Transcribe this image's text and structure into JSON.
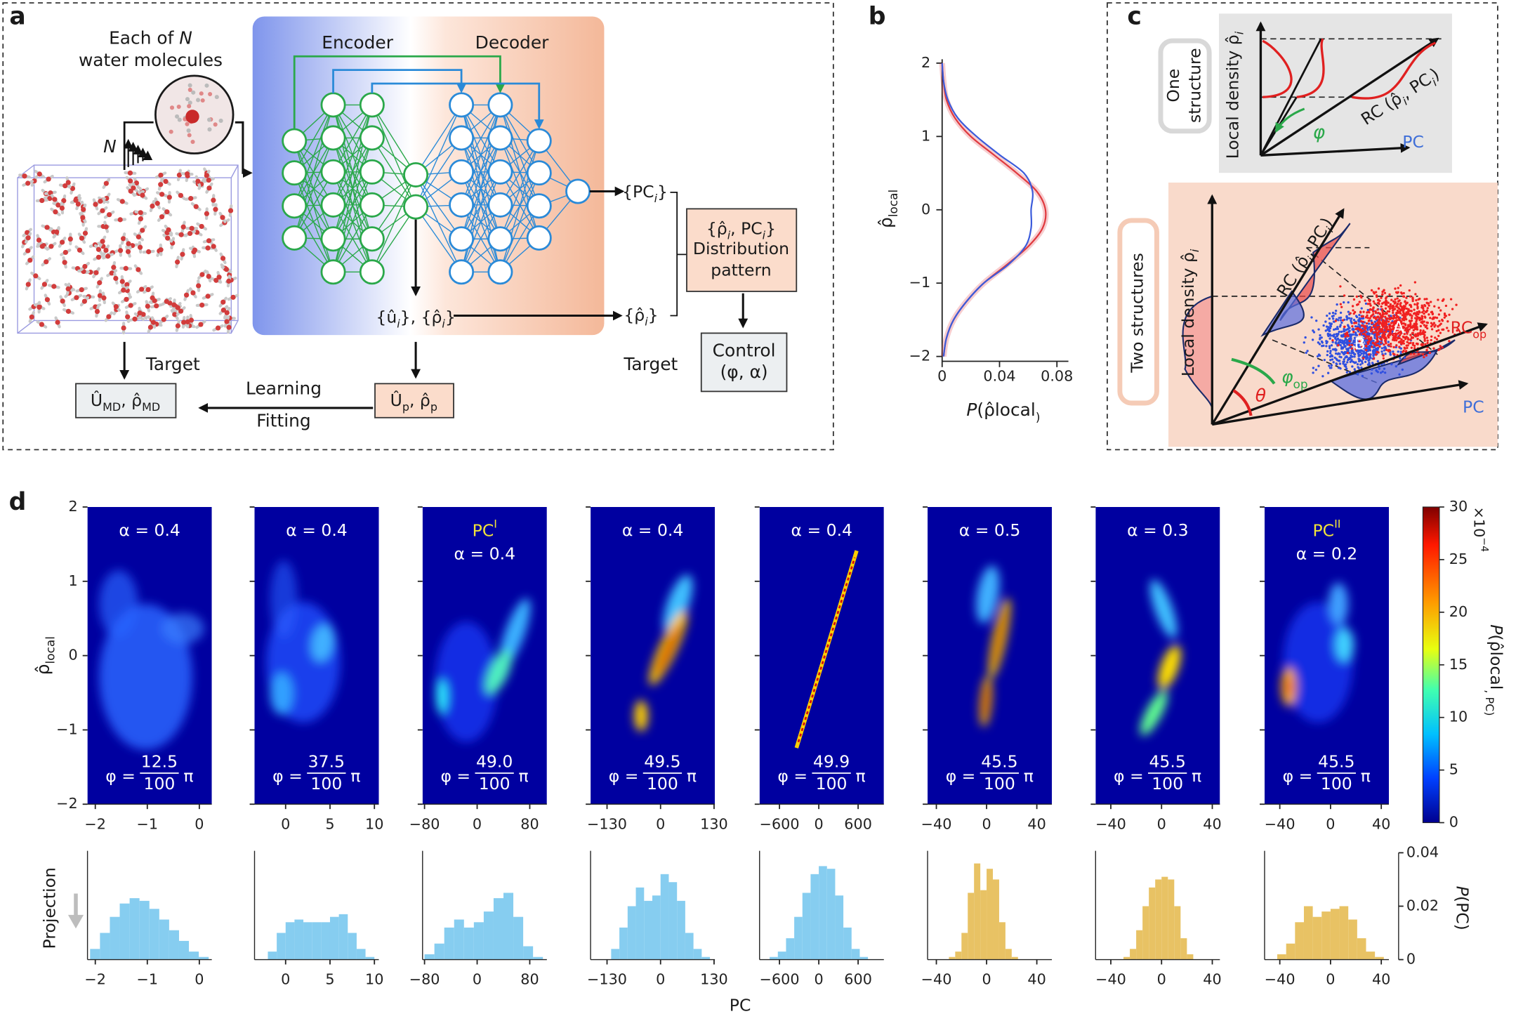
{
  "panel_a": {
    "label": "a",
    "encoder": "Encoder",
    "decoder": "Decoder",
    "molecules": {
      "line1": [
        "Each of ",
        "N"
      ],
      "line2": "water molecules"
    },
    "n_label": "N",
    "pc_out": [
      "{PC",
      "i",
      "}"
    ],
    "latent": [
      "{û",
      "i",
      "}, {ρ̂",
      "i",
      "}"
    ],
    "rho_out": [
      "{ρ̂",
      "i",
      "}"
    ],
    "pattern": {
      "line1": [
        "{ρ̂",
        "i",
        ", PC",
        "i",
        "}"
      ],
      "line2": "Distribution",
      "line3": "pattern"
    },
    "control": {
      "line1": "Control",
      "line2": "(φ, α)"
    },
    "target_right": "Target",
    "target_left": "Target",
    "md": [
      "Û",
      "MD",
      ", ρ̂",
      "MD"
    ],
    "pred": [
      "Û",
      "p",
      ", ρ̂",
      "p"
    ],
    "learning": "Learning",
    "fitting": "Fitting"
  },
  "panel_b": {
    "label": "b"
  },
  "panel_c": {
    "label": "c",
    "one": {
      "line1": "One",
      "line2": "structure"
    },
    "two": "Two structures",
    "top_ylabel": [
      "Local density ρ̂",
      "i"
    ],
    "top_rc": [
      "RC (ρ̂",
      "i",
      ", PC",
      "i",
      ")"
    ],
    "top_pc": "PC",
    "top_phi": "φ",
    "bot_ylabel": [
      "Local density ρ̂",
      "i"
    ],
    "bot_rc": [
      "RC (ρ̂",
      "i",
      ", PC",
      "i",
      ")"
    ],
    "bot_rcop": [
      "RC",
      "op"
    ],
    "bot_phiop": [
      "φ",
      "op"
    ],
    "theta": "θ",
    "a": "A",
    "b": "B",
    "bot_pc": "PC"
  },
  "panel_d": {
    "label": "d",
    "ylabel": [
      "ρ̂",
      "local"
    ],
    "ylim": [
      -2,
      2
    ],
    "yticks": [
      {
        "value": -2,
        "label": "−2"
      },
      {
        "value": -1,
        "label": "−1"
      },
      0,
      1,
      2
    ],
    "phi_label": "φ =",
    "phi_den": "100",
    "pi": "π",
    "xlabel": "PC",
    "projection": "Projection",
    "hist_ylim": [
      0,
      0.04
    ],
    "hist_yticks": [
      0,
      0.02,
      0.04
    ],
    "hist_ylabel": [
      "P",
      "(PC)"
    ]
  },
  "chart_data": [
    {
      "type": "line",
      "xlabel": [
        "P",
        "(ρ̂",
        "local",
        ")"
      ],
      "ylabel": [
        "ρ̂",
        "local"
      ],
      "xlim": [
        0,
        0.088
      ],
      "xticks": [
        0,
        0.04,
        0.08
      ],
      "ylim": [
        -2,
        2
      ],
      "yticks": [
        {
          "value": -2,
          "label": "−2"
        },
        {
          "value": -1,
          "label": "−1"
        },
        0,
        1,
        2
      ],
      "y": [
        -2,
        -1.75,
        -1.5,
        -1.25,
        -1,
        -0.75,
        -0.5,
        -0.25,
        0,
        0.25,
        0.5,
        0.75,
        1,
        1.25,
        1.5,
        1.75,
        2
      ],
      "series": [
        {
          "color": "#e0393e",
          "values": [
            0.001,
            0.003,
            0.008,
            0.017,
            0.029,
            0.045,
            0.06,
            0.07,
            0.072,
            0.066,
            0.052,
            0.036,
            0.02,
            0.009,
            0.003,
            0.001,
            0
          ]
        },
        {
          "color": "#3b5bdb",
          "values": [
            0.001,
            0.003,
            0.008,
            0.017,
            0.029,
            0.046,
            0.058,
            0.062,
            0.062,
            0.063,
            0.057,
            0.04,
            0.024,
            0.011,
            0.004,
            0.001,
            0
          ]
        }
      ]
    },
    {
      "type": "heatmap",
      "alpha": "α = 0.4",
      "phi_num": "12.5",
      "xlim": [
        -2.15,
        0.24
      ],
      "xticks": [
        {
          "value": -2,
          "label": "−2"
        },
        {
          "value": -1,
          "label": "−1"
        },
        0
      ]
    },
    {
      "type": "heatmap",
      "alpha": "α = 0.4",
      "phi_num": "37.5",
      "xlim": [
        -3.5,
        10.5
      ],
      "xticks": [
        0,
        5,
        10
      ]
    },
    {
      "type": "heatmap",
      "title": [
        "PC",
        "I"
      ],
      "alpha": "α = 0.4",
      "phi_num": "49.0",
      "xlim": [
        -83,
        106
      ],
      "xticks": [
        {
          "value": -80,
          "label": "−80"
        },
        0,
        80
      ]
    },
    {
      "type": "heatmap",
      "alpha": "α = 0.4",
      "phi_num": "49.5",
      "xlim": [
        -170,
        132
      ],
      "xticks": [
        {
          "value": -130,
          "label": "−130"
        },
        0,
        130
      ]
    },
    {
      "type": "heatmap",
      "alpha": "α = 0.4",
      "phi_num": "49.9",
      "xlim": [
        -904,
        993
      ],
      "xticks": [
        {
          "value": -600,
          "label": "−600"
        },
        0,
        600
      ]
    },
    {
      "type": "heatmap",
      "alpha": "α = 0.5",
      "phi_num": "45.5",
      "xlim": [
        -47,
        52
      ],
      "xticks": [
        {
          "value": -40,
          "label": "−40"
        },
        0,
        40
      ]
    },
    {
      "type": "heatmap",
      "alpha": "α = 0.3",
      "phi_num": "45.5",
      "xlim": [
        -52,
        46
      ],
      "xticks": [
        {
          "value": -40,
          "label": "−40"
        },
        0,
        40
      ]
    },
    {
      "type": "heatmap",
      "title": [
        "PC",
        "II"
      ],
      "alpha": "α = 0.2",
      "phi_num": "45.5",
      "xlim": [
        -52,
        46
      ],
      "xticks": [
        {
          "value": -40,
          "label": "−40"
        },
        0,
        40
      ]
    },
    {
      "type": "colorbar",
      "clim": [
        0,
        30
      ],
      "ticks": [
        0,
        5,
        10,
        15,
        20,
        25,
        30
      ],
      "label": [
        "P",
        "(ρ̂",
        "local",
        ", PC)"
      ],
      "scale_label": [
        "×10",
        "−4"
      ]
    },
    {
      "type": "histogram",
      "color": "#86cdf0",
      "xlim": [
        -2.15,
        0.24
      ],
      "xticks": [
        {
          "value": -2,
          "label": "−2"
        },
        {
          "value": -1,
          "label": "−1"
        },
        0
      ],
      "bins": [
        -2.1,
        -1.91,
        -1.72,
        -1.53,
        -1.34,
        -1.15,
        -0.96,
        -0.77,
        -0.58,
        -0.39,
        -0.2,
        -0.01,
        0.18
      ],
      "values": [
        0.004,
        0.01,
        0.016,
        0.021,
        0.023,
        0.022,
        0.019,
        0.015,
        0.011,
        0.007,
        0.003,
        0.001
      ]
    },
    {
      "type": "histogram",
      "color": "#86cdf0",
      "xlim": [
        -3.5,
        10.5
      ],
      "xticks": [
        0,
        5,
        10
      ],
      "bins": [
        -2,
        -1,
        0,
        1,
        2,
        3,
        4,
        5,
        6,
        7,
        8,
        9,
        10
      ],
      "values": [
        0.003,
        0.01,
        0.014,
        0.015,
        0.014,
        0.014,
        0.014,
        0.016,
        0.017,
        0.01,
        0.004,
        0.001
      ]
    },
    {
      "type": "histogram",
      "color": "#86cdf0",
      "xlim": [
        -83,
        106
      ],
      "xticks": [
        {
          "value": -80,
          "label": "−80"
        },
        0,
        80
      ],
      "bins": [
        -80,
        -65,
        -50,
        -35,
        -20,
        -5,
        10,
        25,
        40,
        55,
        70,
        85,
        100
      ],
      "values": [
        0.002,
        0.006,
        0.012,
        0.015,
        0.012,
        0.014,
        0.018,
        0.023,
        0.025,
        0.016,
        0.005,
        0.001
      ]
    },
    {
      "type": "histogram",
      "color": "#86cdf0",
      "xlim": [
        -170,
        132
      ],
      "xticks": [
        {
          "value": -130,
          "label": "−130"
        },
        0,
        130
      ],
      "bins": [
        -120,
        -100,
        -80,
        -60,
        -40,
        -20,
        0,
        20,
        40,
        60,
        80,
        100,
        120
      ],
      "values": [
        0.004,
        0.012,
        0.02,
        0.027,
        0.022,
        0.024,
        0.032,
        0.029,
        0.022,
        0.01,
        0.004,
        0.001
      ]
    },
    {
      "type": "histogram",
      "color": "#86cdf0",
      "xlim": [
        -904,
        993
      ],
      "xticks": [
        {
          "value": -600,
          "label": "−600"
        },
        0,
        600
      ],
      "bins": [
        -750,
        -625,
        -500,
        -375,
        -250,
        -125,
        0,
        125,
        250,
        375,
        500,
        625,
        750
      ],
      "values": [
        0.001,
        0.003,
        0.008,
        0.016,
        0.025,
        0.032,
        0.035,
        0.034,
        0.024,
        0.012,
        0.004,
        0.001
      ]
    },
    {
      "type": "histogram",
      "color": "#e8c264",
      "xlim": [
        -47,
        52
      ],
      "xticks": [
        {
          "value": -40,
          "label": "−40"
        },
        0,
        40
      ],
      "bins": [
        -30,
        -25,
        -20,
        -15,
        -10,
        -5,
        0,
        5,
        10,
        15,
        20,
        25,
        30
      ],
      "values": [
        0.001,
        0.003,
        0.01,
        0.025,
        0.036,
        0.026,
        0.034,
        0.03,
        0.014,
        0.004,
        0.001,
        0
      ]
    },
    {
      "type": "histogram",
      "color": "#e8c264",
      "xlim": [
        -52,
        46
      ],
      "xticks": [
        {
          "value": -40,
          "label": "−40"
        },
        0,
        40
      ],
      "bins": [
        -30,
        -25,
        -20,
        -15,
        -10,
        -5,
        0,
        5,
        10,
        15,
        20,
        25,
        30
      ],
      "values": [
        0.001,
        0.004,
        0.011,
        0.02,
        0.027,
        0.03,
        0.031,
        0.03,
        0.02,
        0.008,
        0.002,
        0
      ]
    },
    {
      "type": "histogram",
      "color": "#e8c264",
      "xlim": [
        -52,
        46
      ],
      "xticks": [
        {
          "value": -40,
          "label": "−40"
        },
        0,
        40
      ],
      "bins": [
        -42,
        -35,
        -28,
        -21,
        -14,
        -7,
        0,
        7,
        14,
        21,
        28,
        35,
        42
      ],
      "values": [
        0.002,
        0.006,
        0.014,
        0.02,
        0.016,
        0.018,
        0.019,
        0.02,
        0.015,
        0.008,
        0.003,
        0.001
      ]
    }
  ]
}
